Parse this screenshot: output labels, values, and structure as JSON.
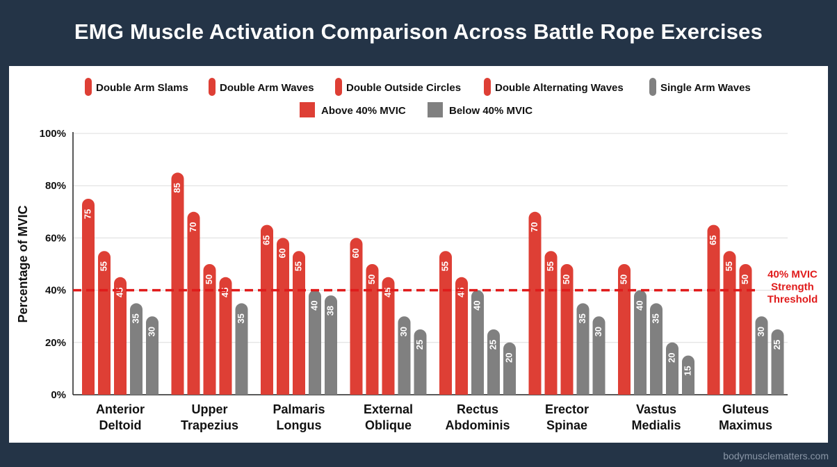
{
  "title": "EMG Muscle Activation Comparison Across Battle Rope Exercises",
  "watermark": "bodymusclematters.com",
  "colors": {
    "background": "#243447",
    "above": "#de3f35",
    "below": "#808080",
    "threshold": "#e01b1b",
    "grid": "#dcdcdc"
  },
  "chart_data": {
    "type": "bar",
    "title": "EMG Muscle Activation Comparison Across Battle Rope Exercises",
    "ylabel": "Percentage of MVIC",
    "ylim": [
      0,
      100
    ],
    "yticks": [
      0,
      20,
      40,
      60,
      80,
      100
    ],
    "ytick_labels": [
      "0%",
      "20%",
      "40%",
      "60%",
      "80%",
      "100%"
    ],
    "categories": [
      [
        "Anterior",
        "Deltoid"
      ],
      [
        "Upper",
        "Trapezius"
      ],
      [
        "Palmaris",
        "Longus"
      ],
      [
        "External",
        "Oblique"
      ],
      [
        "Rectus",
        "Abdominis"
      ],
      [
        "Erector",
        "Spinae"
      ],
      [
        "Vastus",
        "Medialis"
      ],
      [
        "Gluteus",
        "Maximus"
      ]
    ],
    "series": [
      {
        "name": "Double Arm Slams",
        "values": [
          75,
          85,
          65,
          60,
          55,
          70,
          50,
          65
        ]
      },
      {
        "name": "Double Arm Waves",
        "values": [
          55,
          70,
          60,
          50,
          45,
          55,
          40,
          55
        ]
      },
      {
        "name": "Double Outside Circles",
        "values": [
          45,
          50,
          55,
          45,
          40,
          50,
          35,
          50
        ]
      },
      {
        "name": "Double Alternating Waves",
        "values": [
          35,
          45,
          40,
          30,
          25,
          35,
          20,
          30
        ]
      },
      {
        "name": "Single Arm Waves",
        "values": [
          30,
          35,
          38,
          25,
          20,
          30,
          15,
          25
        ]
      }
    ],
    "threshold": {
      "value": 40,
      "label": [
        "40% MVIC",
        "Strength",
        "Threshold"
      ]
    },
    "legend": {
      "placement": "top",
      "series_colors": [
        "#de3f35",
        "#de3f35",
        "#de3f35",
        "#de3f35",
        "#808080"
      ],
      "status_entries": [
        {
          "label": "Above 40% MVIC",
          "color": "#de3f35"
        },
        {
          "label": "Below 40% MVIC",
          "color": "#808080"
        }
      ]
    },
    "color_rule": "bars above 40% MVIC red, at or below grey",
    "grid": true
  }
}
